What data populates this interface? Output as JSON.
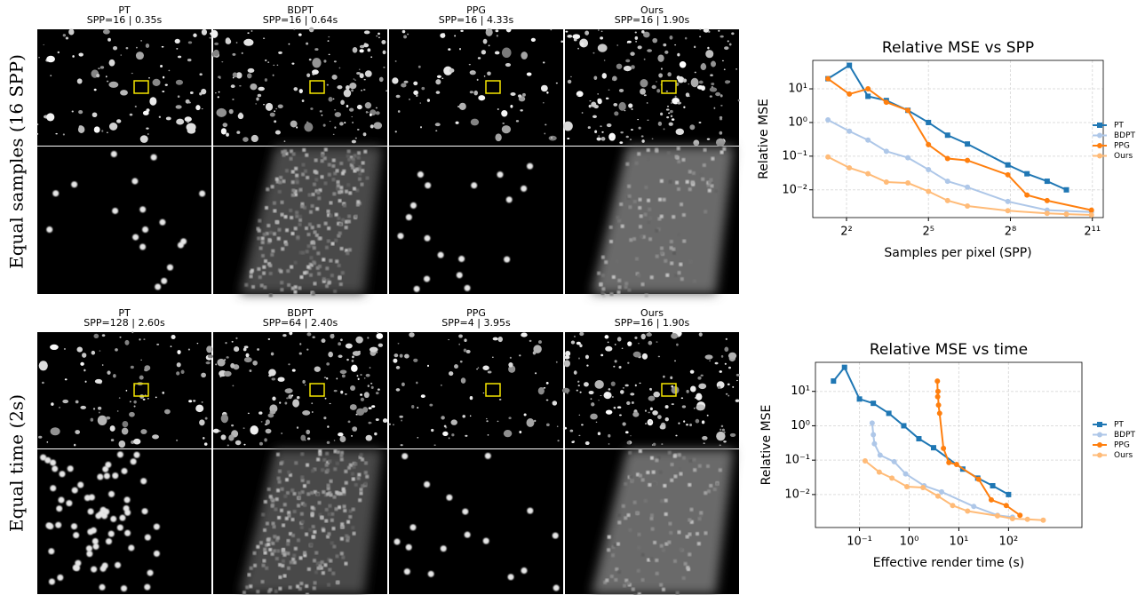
{
  "sections": [
    {
      "label": "Equal samples (16 SPP)",
      "columns": [
        {
          "method": "PT",
          "stats": "SPP=16 | 0.35s"
        },
        {
          "method": "BDPT",
          "stats": "SPP=16 | 0.64s"
        },
        {
          "method": "PPG",
          "stats": "SPP=16 | 4.33s"
        },
        {
          "method": "Ours",
          "stats": "SPP=16 | 1.90s"
        }
      ]
    },
    {
      "label": "Equal time (2s)",
      "columns": [
        {
          "method": "PT",
          "stats": "SPP=128 | 2.60s"
        },
        {
          "method": "BDPT",
          "stats": "SPP=64 | 2.40s"
        },
        {
          "method": "PPG",
          "stats": "SPP=4 | 3.95s"
        },
        {
          "method": "Ours",
          "stats": "SPP=16 | 1.90s"
        }
      ]
    }
  ],
  "chart_data": [
    {
      "type": "line",
      "title": "Relative MSE vs SPP",
      "x_label": "Samples per pixel (SPP)",
      "y_label": "Relative MSE",
      "log_x": true,
      "log_y": true,
      "grid": true,
      "legend": "outside-right",
      "xlim": [
        1.7,
        2700
      ],
      "ylim": [
        0.0015,
        70
      ],
      "xticks": [
        {
          "value": 4,
          "label": "2²"
        },
        {
          "value": 32,
          "label": "2⁵"
        },
        {
          "value": 256,
          "label": "2⁸"
        },
        {
          "value": 2048,
          "label": "2¹¹"
        }
      ],
      "yticks": [
        {
          "value": 10,
          "label": "10¹"
        },
        {
          "value": 1,
          "label": "10⁰"
        },
        {
          "value": 0.1,
          "label": "10⁻¹"
        },
        {
          "value": 0.01,
          "label": "10⁻²"
        }
      ],
      "series": [
        {
          "name": "PT",
          "color": "#1f77b4",
          "marker": "square",
          "x": [
            2.5,
            4.3,
            6.9,
            11,
            19,
            32,
            52,
            86,
            240,
            390,
            650,
            1060
          ],
          "values": [
            20,
            50,
            6,
            4.5,
            2.3,
            1.0,
            0.42,
            0.23,
            0.055,
            0.03,
            0.018,
            0.01
          ]
        },
        {
          "name": "BDPT",
          "color": "#aec7e8",
          "marker": "circle",
          "x": [
            2.5,
            4.3,
            6.9,
            11,
            19,
            32,
            52,
            86,
            240,
            650,
            2000
          ],
          "values": [
            1.2,
            0.55,
            0.3,
            0.14,
            0.09,
            0.04,
            0.018,
            0.012,
            0.0045,
            0.0025,
            0.0022
          ]
        },
        {
          "name": "PPG",
          "color": "#ff7f0e",
          "marker": "circle",
          "x": [
            2.5,
            4.3,
            6.9,
            11,
            19,
            32,
            52,
            86,
            240,
            390,
            650,
            2000
          ],
          "values": [
            20,
            7,
            10,
            4,
            2.3,
            0.22,
            0.085,
            0.075,
            0.028,
            0.007,
            0.0048,
            0.0025
          ]
        },
        {
          "name": "Ours",
          "color": "#ffbb78",
          "marker": "circle",
          "x": [
            2.5,
            4.3,
            6.9,
            11,
            19,
            32,
            52,
            86,
            240,
            650,
            1060,
            2000
          ],
          "values": [
            0.095,
            0.045,
            0.03,
            0.017,
            0.016,
            0.009,
            0.0048,
            0.0033,
            0.0024,
            0.002,
            0.0019,
            0.0018
          ]
        }
      ]
    },
    {
      "type": "line",
      "title": "Relative MSE vs time",
      "x_label": "Effective render time (s)",
      "y_label": "Relative MSE",
      "log_x": true,
      "log_y": true,
      "grid": true,
      "legend": "outside-right",
      "xlim": [
        0.013,
        3000
      ],
      "ylim": [
        0.0011,
        70
      ],
      "xticks": [
        {
          "value": 0.1,
          "label": "10⁻¹"
        },
        {
          "value": 1,
          "label": "10⁰"
        },
        {
          "value": 10,
          "label": "10¹"
        },
        {
          "value": 100,
          "label": "10²"
        }
      ],
      "yticks": [
        {
          "value": 10,
          "label": "10¹"
        },
        {
          "value": 1,
          "label": "10⁰"
        },
        {
          "value": 0.1,
          "label": "10⁻¹"
        },
        {
          "value": 0.01,
          "label": "10⁻²"
        }
      ],
      "series": [
        {
          "name": "PT",
          "color": "#1f77b4",
          "marker": "square",
          "x": [
            0.03,
            0.05,
            0.1,
            0.19,
            0.39,
            0.78,
            1.57,
            3.1,
            12,
            24,
            48,
            100
          ],
          "values": [
            20,
            50,
            6,
            4.5,
            2.3,
            1.0,
            0.42,
            0.23,
            0.055,
            0.03,
            0.018,
            0.01
          ]
        },
        {
          "name": "BDPT",
          "color": "#aec7e8",
          "marker": "circle",
          "x": [
            0.18,
            0.19,
            0.2,
            0.26,
            0.5,
            0.85,
            2,
            4.5,
            20,
            60,
            120
          ],
          "values": [
            1.2,
            0.55,
            0.3,
            0.14,
            0.09,
            0.04,
            0.018,
            0.012,
            0.0045,
            0.0025,
            0.0022
          ]
        },
        {
          "name": "PPG",
          "color": "#ff7f0e",
          "marker": "circle",
          "x": [
            3.7,
            3.75,
            3.8,
            3.9,
            4.1,
            4.9,
            6.3,
            9,
            25,
            45,
            90,
            170
          ],
          "values": [
            20,
            7,
            10,
            4,
            2.3,
            0.22,
            0.085,
            0.075,
            0.028,
            0.007,
            0.0048,
            0.0025
          ]
        },
        {
          "name": "Ours",
          "color": "#ffbb78",
          "marker": "circle",
          "x": [
            0.13,
            0.25,
            0.45,
            0.9,
            1.9,
            3.8,
            7.5,
            15,
            60,
            120,
            240,
            500
          ],
          "values": [
            0.095,
            0.045,
            0.03,
            0.017,
            0.016,
            0.009,
            0.0048,
            0.0033,
            0.0024,
            0.002,
            0.0019,
            0.0018
          ]
        }
      ]
    }
  ]
}
